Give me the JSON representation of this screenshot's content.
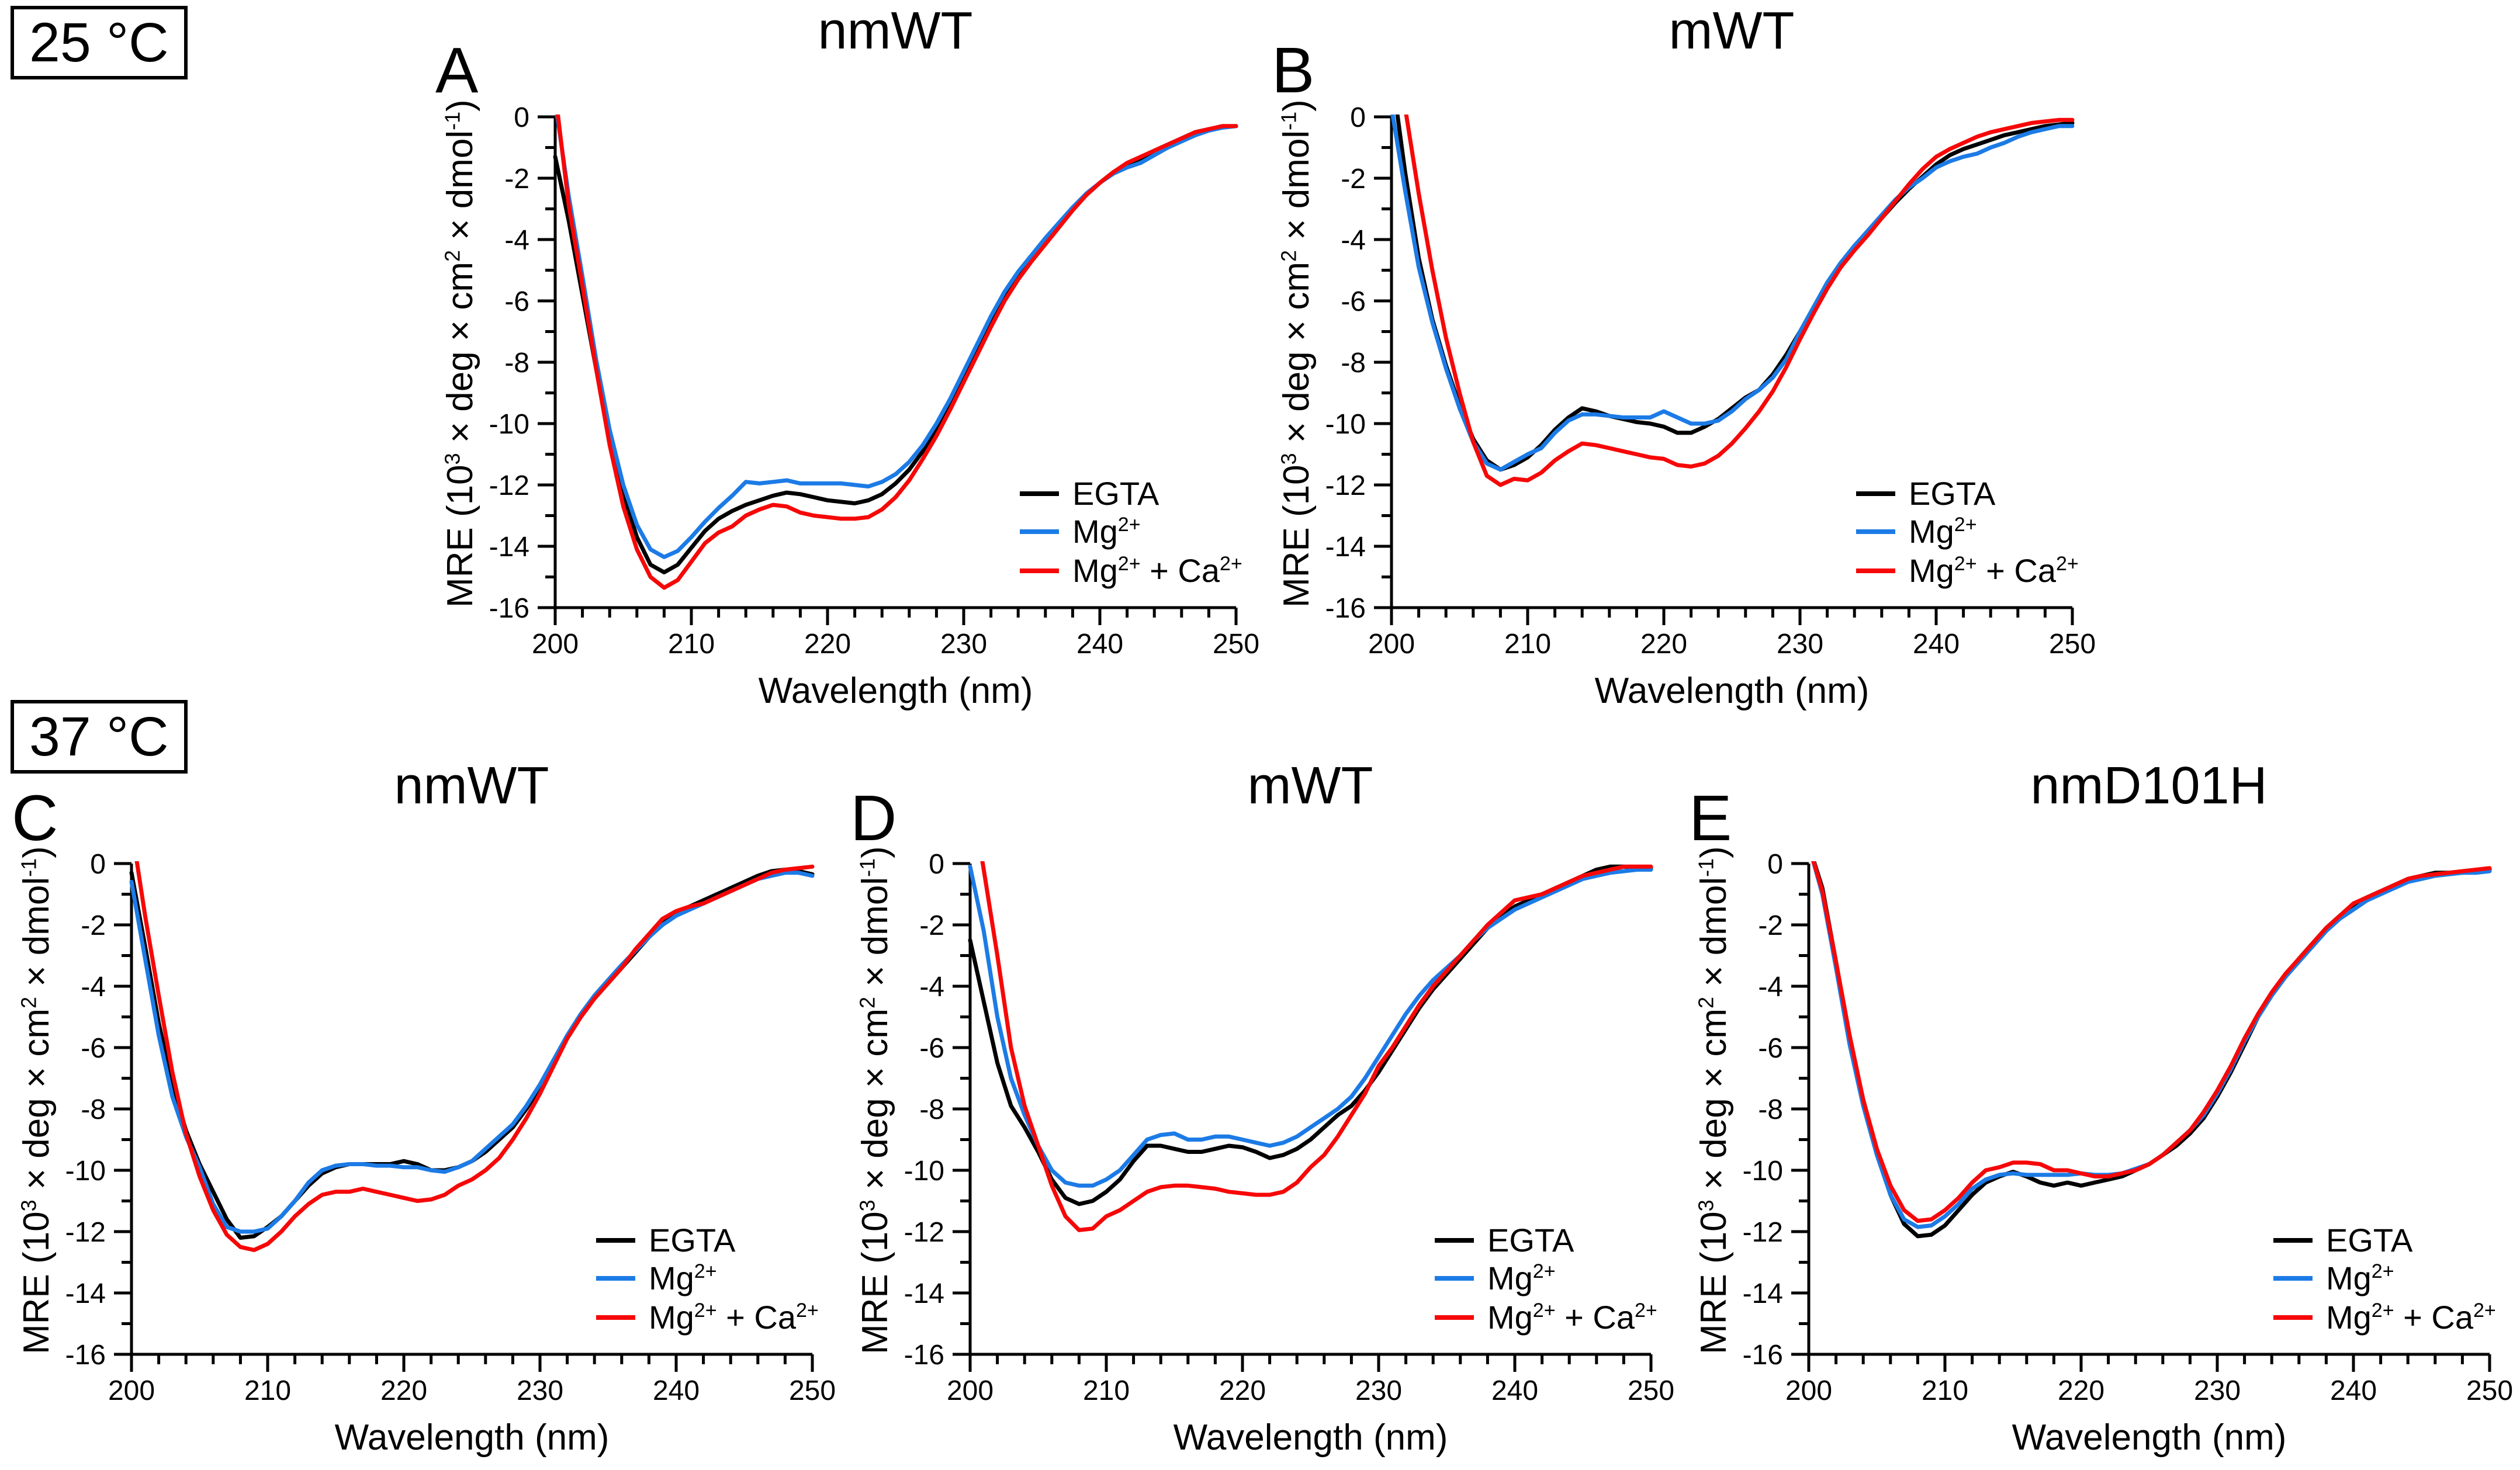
{
  "figure_name": "CD spectra figure",
  "rows": [
    {
      "temp_label": "25 °C"
    },
    {
      "temp_label": "37 °C"
    }
  ],
  "colors": {
    "egta": "#000000",
    "mg": "#1C7BE6",
    "mgca": "#F60808",
    "axis": "#000000",
    "background": "#FFFFFF"
  },
  "axes": {
    "x_label": "Wavelength (nm)",
    "y_label": "MRE (10^3^ × deg × cm^2^ × dmol^-1^)",
    "xlim": [
      200,
      250
    ],
    "ylim": [
      -16,
      0
    ],
    "x_major_step": 10,
    "x_minor_step": 2,
    "y_major_step": 2,
    "y_minor_step": 1,
    "grid": false
  },
  "legend": {
    "position": "inside-bottom-right",
    "entries": [
      {
        "key": "egta",
        "label": "EGTA"
      },
      {
        "key": "mg",
        "label": "Mg^2+^"
      },
      {
        "key": "mgca",
        "label": "Mg^2+^ + Ca^2+^"
      }
    ]
  },
  "chart_data": [
    {
      "panel_label": "A",
      "title": "nmWT",
      "temperature": "25 °C",
      "type": "line",
      "x_start": 200,
      "x_step": 1,
      "series": [
        {
          "key": "egta",
          "values": [
            -1.3,
            -3.4,
            -5.8,
            -8.2,
            -10.4,
            -12.3,
            -13.7,
            -14.6,
            -14.85,
            -14.6,
            -14.05,
            -13.5,
            -13.1,
            -12.85,
            -12.65,
            -12.5,
            -12.35,
            -12.25,
            -12.3,
            -12.4,
            -12.5,
            -12.55,
            -12.6,
            -12.5,
            -12.3,
            -11.95,
            -11.5,
            -10.9,
            -10.2,
            -9.4,
            -8.5,
            -7.6,
            -6.7,
            -5.9,
            -5.2,
            -4.6,
            -4.05,
            -3.5,
            -3.0,
            -2.55,
            -2.15,
            -1.8,
            -1.55,
            -1.35,
            -1.1,
            -0.9,
            -0.7,
            -0.5,
            -0.4,
            -0.35,
            -0.3
          ]
        },
        {
          "key": "mg",
          "values": [
            0.5,
            -2.6,
            -5.2,
            -7.9,
            -10.2,
            -12.0,
            -13.3,
            -14.1,
            -14.35,
            -14.15,
            -13.7,
            -13.2,
            -12.75,
            -12.35,
            -11.9,
            -11.95,
            -11.9,
            -11.85,
            -11.95,
            -11.95,
            -11.95,
            -11.95,
            -12.0,
            -12.05,
            -11.9,
            -11.65,
            -11.25,
            -10.7,
            -10.0,
            -9.2,
            -8.3,
            -7.4,
            -6.5,
            -5.7,
            -5.05,
            -4.5,
            -3.95,
            -3.45,
            -2.95,
            -2.5,
            -2.15,
            -1.85,
            -1.65,
            -1.5,
            -1.25,
            -1.0,
            -0.8,
            -0.6,
            -0.45,
            -0.35,
            -0.3
          ]
        },
        {
          "key": "mgca",
          "values": [
            0.8,
            -2.9,
            -5.5,
            -8.2,
            -10.7,
            -12.7,
            -14.1,
            -15.0,
            -15.35,
            -15.1,
            -14.5,
            -13.9,
            -13.55,
            -13.35,
            -13.0,
            -12.8,
            -12.65,
            -12.7,
            -12.9,
            -13.0,
            -13.05,
            -13.1,
            -13.1,
            -13.05,
            -12.8,
            -12.4,
            -11.85,
            -11.15,
            -10.4,
            -9.55,
            -8.65,
            -7.75,
            -6.85,
            -6.0,
            -5.3,
            -4.7,
            -4.15,
            -3.6,
            -3.05,
            -2.55,
            -2.15,
            -1.8,
            -1.5,
            -1.3,
            -1.1,
            -0.9,
            -0.7,
            -0.5,
            -0.4,
            -0.3,
            -0.3
          ]
        }
      ]
    },
    {
      "panel_label": "B",
      "title": "mWT",
      "temperature": "25 °C",
      "type": "line",
      "x_start": 200,
      "x_step": 1,
      "series": [
        {
          "key": "egta",
          "values": [
            1.5,
            -1.8,
            -4.6,
            -6.6,
            -8.1,
            -9.4,
            -10.5,
            -11.2,
            -11.5,
            -11.35,
            -11.1,
            -10.7,
            -10.2,
            -9.8,
            -9.5,
            -9.6,
            -9.75,
            -9.85,
            -9.95,
            -10.0,
            -10.1,
            -10.3,
            -10.3,
            -10.1,
            -9.85,
            -9.5,
            -9.15,
            -8.9,
            -8.4,
            -7.75,
            -7.0,
            -6.25,
            -5.5,
            -4.85,
            -4.3,
            -3.8,
            -3.3,
            -2.8,
            -2.35,
            -1.95,
            -1.55,
            -1.25,
            -1.05,
            -0.9,
            -0.75,
            -0.6,
            -0.5,
            -0.4,
            -0.3,
            -0.25,
            -0.2
          ]
        },
        {
          "key": "mg",
          "values": [
            0.3,
            -2.4,
            -4.9,
            -6.7,
            -8.2,
            -9.5,
            -10.6,
            -11.3,
            -11.5,
            -11.25,
            -11.0,
            -10.8,
            -10.3,
            -9.9,
            -9.7,
            -9.7,
            -9.75,
            -9.8,
            -9.8,
            -9.8,
            -9.6,
            -9.8,
            -10.0,
            -10.0,
            -9.9,
            -9.6,
            -9.2,
            -8.9,
            -8.5,
            -7.9,
            -7.0,
            -6.2,
            -5.4,
            -4.75,
            -4.2,
            -3.7,
            -3.2,
            -2.7,
            -2.3,
            -2.0,
            -1.65,
            -1.45,
            -1.3,
            -1.2,
            -1.0,
            -0.85,
            -0.65,
            -0.5,
            -0.4,
            -0.3,
            -0.3
          ]
        },
        {
          "key": "mgca",
          "values": [
            3.0,
            0.3,
            -2.5,
            -5.0,
            -7.2,
            -9.0,
            -10.6,
            -11.7,
            -12.0,
            -11.8,
            -11.85,
            -11.6,
            -11.2,
            -10.9,
            -10.65,
            -10.7,
            -10.8,
            -10.9,
            -11.0,
            -11.1,
            -11.15,
            -11.35,
            -11.4,
            -11.3,
            -11.05,
            -10.65,
            -10.15,
            -9.6,
            -8.95,
            -8.15,
            -7.25,
            -6.4,
            -5.6,
            -4.9,
            -4.35,
            -3.85,
            -3.3,
            -2.75,
            -2.2,
            -1.7,
            -1.3,
            -1.05,
            -0.85,
            -0.65,
            -0.5,
            -0.4,
            -0.3,
            -0.2,
            -0.15,
            -0.1,
            -0.1
          ]
        }
      ]
    },
    {
      "panel_label": "C",
      "title": "nmWT",
      "temperature": "37 °C",
      "type": "line",
      "x_start": 200,
      "x_step": 1,
      "series": [
        {
          "key": "egta",
          "values": [
            -0.3,
            -2.7,
            -5.2,
            -7.2,
            -8.7,
            -9.8,
            -10.7,
            -11.6,
            -12.2,
            -12.15,
            -11.85,
            -11.5,
            -11.0,
            -10.5,
            -10.1,
            -9.9,
            -9.8,
            -9.8,
            -9.8,
            -9.8,
            -9.7,
            -9.8,
            -10.0,
            -10.0,
            -9.9,
            -9.7,
            -9.4,
            -9.0,
            -8.6,
            -8.0,
            -7.3,
            -6.5,
            -5.7,
            -5.0,
            -4.4,
            -3.9,
            -3.4,
            -2.9,
            -2.4,
            -1.95,
            -1.6,
            -1.4,
            -1.2,
            -1.0,
            -0.8,
            -0.6,
            -0.4,
            -0.25,
            -0.2,
            -0.25,
            -0.35
          ]
        },
        {
          "key": "mg",
          "values": [
            -0.6,
            -3.1,
            -5.6,
            -7.6,
            -8.9,
            -9.9,
            -11.1,
            -11.85,
            -12.0,
            -12.0,
            -11.9,
            -11.5,
            -11.0,
            -10.4,
            -10.0,
            -9.85,
            -9.8,
            -9.8,
            -9.85,
            -9.85,
            -9.9,
            -9.9,
            -10.0,
            -10.05,
            -9.9,
            -9.7,
            -9.3,
            -8.9,
            -8.5,
            -7.9,
            -7.2,
            -6.4,
            -5.6,
            -4.9,
            -4.3,
            -3.8,
            -3.3,
            -2.85,
            -2.4,
            -2.0,
            -1.7,
            -1.5,
            -1.3,
            -1.1,
            -0.9,
            -0.7,
            -0.5,
            -0.4,
            -0.3,
            -0.3,
            -0.4
          ]
        },
        {
          "key": "mgca",
          "values": [
            1.2,
            -1.7,
            -4.3,
            -6.8,
            -8.8,
            -10.2,
            -11.3,
            -12.1,
            -12.5,
            -12.6,
            -12.4,
            -12.0,
            -11.5,
            -11.1,
            -10.8,
            -10.7,
            -10.7,
            -10.6,
            -10.7,
            -10.8,
            -10.9,
            -11.0,
            -10.95,
            -10.8,
            -10.5,
            -10.3,
            -10.0,
            -9.6,
            -9.0,
            -8.3,
            -7.5,
            -6.6,
            -5.7,
            -5.0,
            -4.4,
            -3.9,
            -3.4,
            -2.8,
            -2.3,
            -1.8,
            -1.55,
            -1.4,
            -1.3,
            -1.1,
            -0.9,
            -0.7,
            -0.5,
            -0.3,
            -0.2,
            -0.15,
            -0.1
          ]
        }
      ]
    },
    {
      "panel_label": "D",
      "title": "mWT",
      "temperature": "37 °C",
      "type": "line",
      "x_start": 200,
      "x_step": 1,
      "series": [
        {
          "key": "egta",
          "values": [
            -2.5,
            -4.5,
            -6.5,
            -7.9,
            -8.6,
            -9.4,
            -10.3,
            -10.9,
            -11.1,
            -11.0,
            -10.7,
            -10.3,
            -9.7,
            -9.2,
            -9.2,
            -9.3,
            -9.4,
            -9.4,
            -9.3,
            -9.2,
            -9.25,
            -9.4,
            -9.6,
            -9.5,
            -9.3,
            -9.0,
            -8.6,
            -8.2,
            -7.9,
            -7.4,
            -6.8,
            -6.1,
            -5.4,
            -4.7,
            -4.1,
            -3.6,
            -3.1,
            -2.6,
            -2.1,
            -1.7,
            -1.4,
            -1.2,
            -1.0,
            -0.8,
            -0.6,
            -0.4,
            -0.2,
            -0.1,
            -0.1,
            -0.15,
            -0.15
          ]
        },
        {
          "key": "mg",
          "values": [
            -0.1,
            -2.2,
            -5.0,
            -7.0,
            -8.2,
            -9.2,
            -10.0,
            -10.4,
            -10.5,
            -10.5,
            -10.3,
            -10.0,
            -9.5,
            -9.0,
            -8.85,
            -8.8,
            -9.0,
            -9.0,
            -8.9,
            -8.9,
            -9.0,
            -9.1,
            -9.2,
            -9.1,
            -8.9,
            -8.6,
            -8.3,
            -8.0,
            -7.6,
            -7.0,
            -6.3,
            -5.6,
            -4.9,
            -4.3,
            -3.8,
            -3.4,
            -3.0,
            -2.5,
            -2.1,
            -1.8,
            -1.5,
            -1.3,
            -1.1,
            -0.9,
            -0.7,
            -0.5,
            -0.4,
            -0.3,
            -0.25,
            -0.2,
            -0.2
          ]
        },
        {
          "key": "mgca",
          "values": [
            2.5,
            -0.2,
            -3.0,
            -6.0,
            -7.9,
            -9.2,
            -10.5,
            -11.5,
            -11.95,
            -11.9,
            -11.5,
            -11.3,
            -11.0,
            -10.7,
            -10.55,
            -10.5,
            -10.5,
            -10.55,
            -10.6,
            -10.7,
            -10.75,
            -10.8,
            -10.8,
            -10.7,
            -10.4,
            -9.9,
            -9.5,
            -8.9,
            -8.2,
            -7.5,
            -6.6,
            -6.0,
            -5.3,
            -4.6,
            -4.0,
            -3.5,
            -3.0,
            -2.5,
            -2.0,
            -1.6,
            -1.2,
            -1.1,
            -1.0,
            -0.8,
            -0.6,
            -0.4,
            -0.3,
            -0.2,
            -0.1,
            -0.1,
            -0.1
          ]
        }
      ]
    },
    {
      "panel_label": "E",
      "title": "nmD101H",
      "temperature": "37 °C",
      "type": "line",
      "x_start": 200,
      "x_step": 1,
      "series": [
        {
          "key": "egta",
          "values": [
            0.6,
            -0.8,
            -3.2,
            -5.7,
            -7.7,
            -9.4,
            -10.8,
            -11.75,
            -12.15,
            -12.1,
            -11.8,
            -11.3,
            -10.8,
            -10.4,
            -10.2,
            -10.05,
            -10.2,
            -10.4,
            -10.5,
            -10.4,
            -10.5,
            -10.4,
            -10.3,
            -10.2,
            -10.0,
            -9.8,
            -9.5,
            -9.2,
            -8.8,
            -8.3,
            -7.6,
            -6.8,
            -5.9,
            -5.0,
            -4.3,
            -3.7,
            -3.1,
            -2.6,
            -2.1,
            -1.7,
            -1.4,
            -1.1,
            -0.9,
            -0.7,
            -0.5,
            -0.4,
            -0.3,
            -0.3,
            -0.3,
            -0.25,
            -0.2
          ]
        },
        {
          "key": "mg",
          "values": [
            0.6,
            -1.0,
            -3.4,
            -5.9,
            -7.9,
            -9.5,
            -10.8,
            -11.6,
            -11.85,
            -11.8,
            -11.5,
            -11.1,
            -10.6,
            -10.3,
            -10.15,
            -10.1,
            -10.15,
            -10.15,
            -10.15,
            -10.15,
            -10.1,
            -10.15,
            -10.15,
            -10.1,
            -9.95,
            -9.8,
            -9.5,
            -9.1,
            -8.7,
            -8.2,
            -7.5,
            -6.7,
            -5.8,
            -5.0,
            -4.3,
            -3.7,
            -3.2,
            -2.7,
            -2.2,
            -1.8,
            -1.5,
            -1.2,
            -1.0,
            -0.8,
            -0.6,
            -0.5,
            -0.4,
            -0.35,
            -0.3,
            -0.3,
            -0.25
          ]
        },
        {
          "key": "mgca",
          "values": [
            0.6,
            -0.9,
            -3.2,
            -5.6,
            -7.7,
            -9.3,
            -10.5,
            -11.3,
            -11.65,
            -11.6,
            -11.3,
            -10.9,
            -10.4,
            -10.0,
            -9.9,
            -9.75,
            -9.75,
            -9.8,
            -10.0,
            -10.0,
            -10.1,
            -10.2,
            -10.2,
            -10.1,
            -10.0,
            -9.8,
            -9.5,
            -9.1,
            -8.7,
            -8.1,
            -7.4,
            -6.6,
            -5.7,
            -4.9,
            -4.2,
            -3.6,
            -3.1,
            -2.6,
            -2.1,
            -1.7,
            -1.3,
            -1.1,
            -0.9,
            -0.7,
            -0.5,
            -0.4,
            -0.35,
            -0.3,
            -0.25,
            -0.2,
            -0.15
          ]
        }
      ]
    }
  ]
}
